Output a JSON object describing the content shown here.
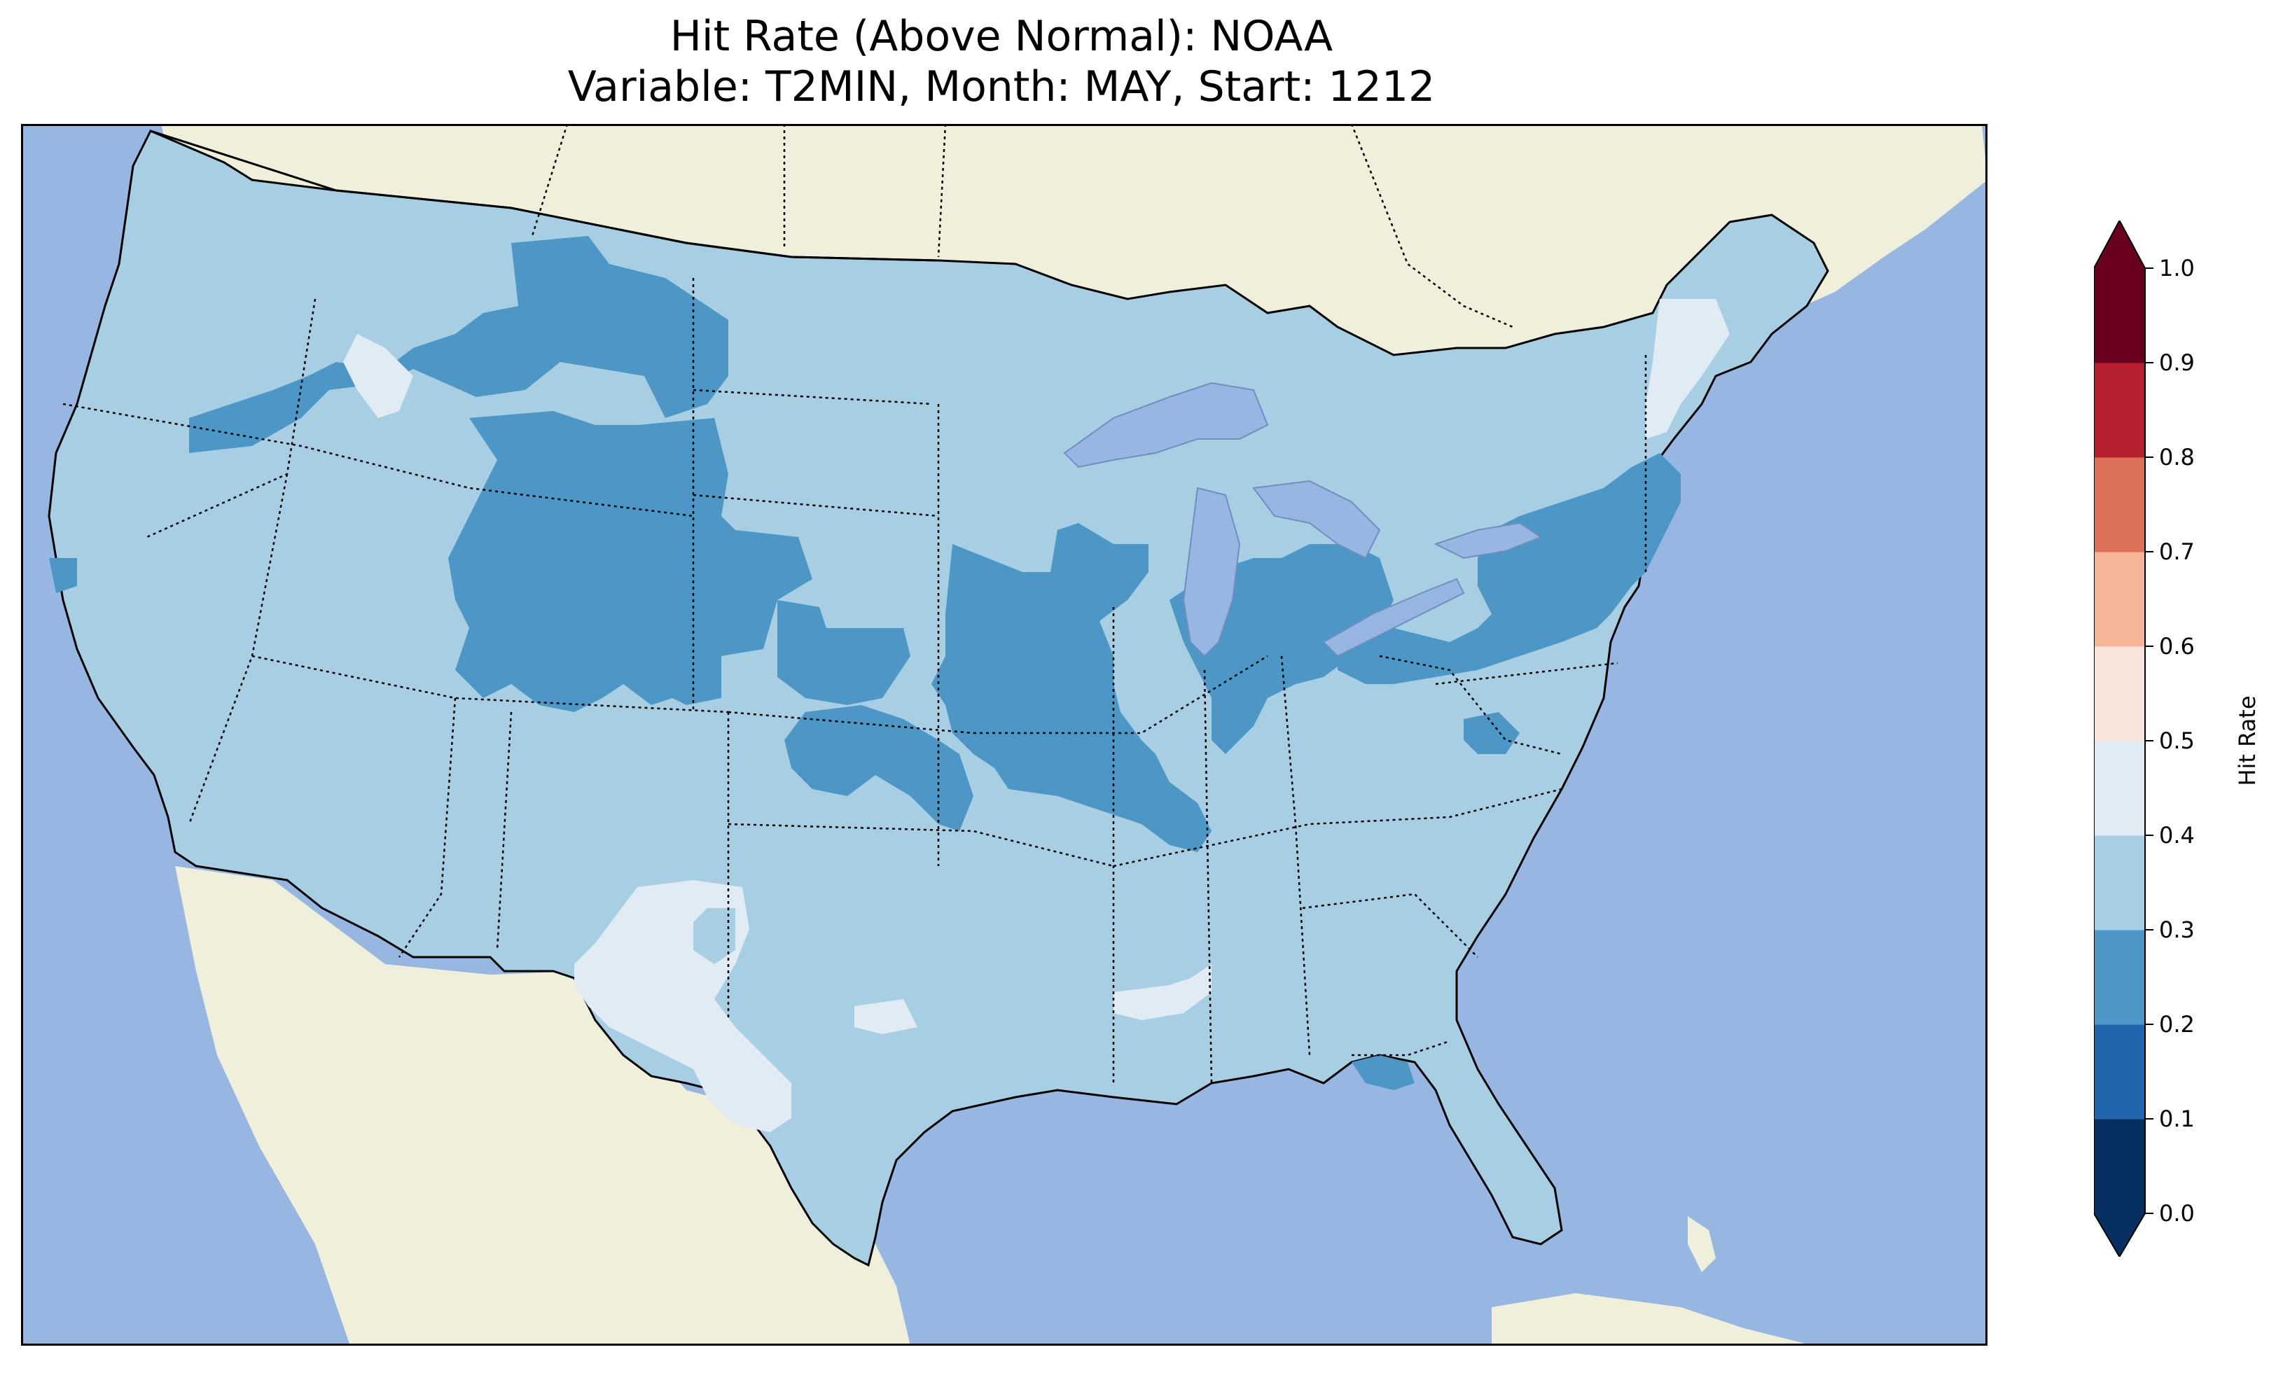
{
  "title": {
    "line1": "Hit Rate (Above Normal): NOAA",
    "line2": "Variable: T2MIN, Month: MAY, Start: 1212"
  },
  "colors": {
    "ocean": "#97b6e1",
    "land": "#efefdb",
    "border": "#000000"
  },
  "legend": {
    "label": "Hit Rate",
    "ticks": [
      "0.0",
      "0.1",
      "0.2",
      "0.3",
      "0.4",
      "0.5",
      "0.6",
      "0.7",
      "0.8",
      "0.9",
      "1.0"
    ],
    "bins": [
      {
        "range": [
          0.0,
          0.1
        ],
        "color": "#053061"
      },
      {
        "range": [
          0.1,
          0.2
        ],
        "color": "#2166ac"
      },
      {
        "range": [
          0.2,
          0.3
        ],
        "color": "#4d97c7"
      },
      {
        "range": [
          0.3,
          0.4
        ],
        "color": "#a8cee4"
      },
      {
        "range": [
          0.4,
          0.5
        ],
        "color": "#e0ebf4"
      },
      {
        "range": [
          0.5,
          0.6
        ],
        "color": "#f9e4dc"
      },
      {
        "range": [
          0.6,
          0.7
        ],
        "color": "#f5b596"
      },
      {
        "range": [
          0.7,
          0.8
        ],
        "color": "#dc6f57"
      },
      {
        "range": [
          0.8,
          0.9
        ],
        "color": "#b6202f"
      },
      {
        "range": [
          0.9,
          1.0
        ],
        "color": "#67001f"
      }
    ],
    "under_color": "#053061",
    "over_color": "#67001f"
  }
}
